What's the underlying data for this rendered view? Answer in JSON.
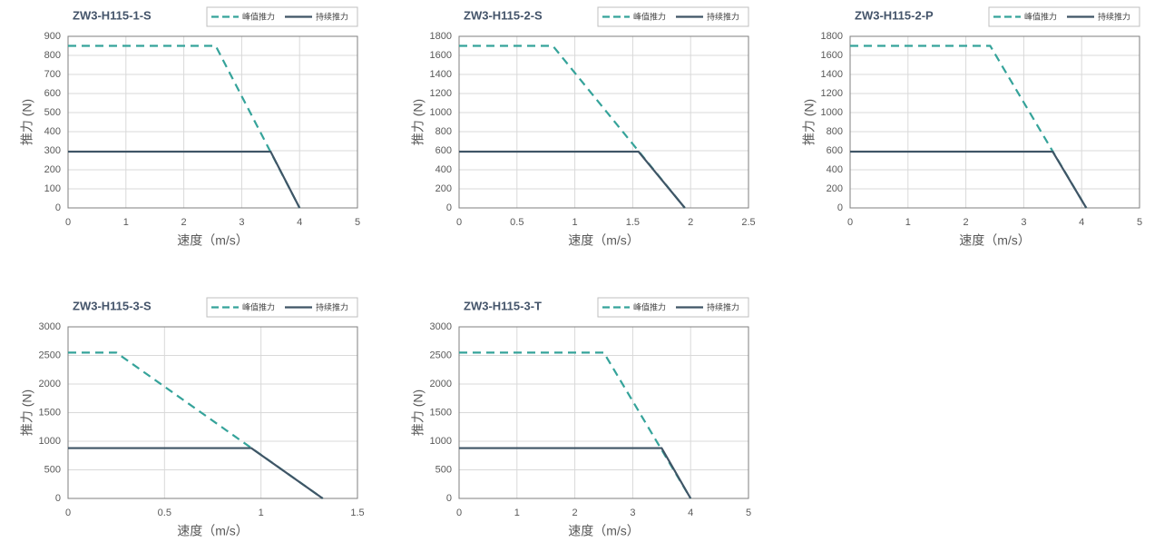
{
  "chart_data": [
    {
      "type": "line",
      "title": "ZW3-H115-1-S",
      "xlabel": "速度（m/s）",
      "ylabel": "推力 (N)",
      "xlim": [
        0,
        5
      ],
      "xticks": [
        0,
        1,
        2,
        3,
        4,
        5
      ],
      "ylim": [
        0,
        900
      ],
      "yticks": [
        0,
        100,
        200,
        300,
        400,
        500,
        600,
        700,
        800,
        900
      ],
      "grid": true,
      "legend": "top-right",
      "series": [
        {
          "name": "峰值推力",
          "color": "#35a39a",
          "dashed": true,
          "x": [
            0,
            2.55,
            4
          ],
          "values": [
            850,
            850,
            0
          ]
        },
        {
          "name": "持续推力",
          "color": "#3f5566",
          "dashed": false,
          "x": [
            0,
            3.5,
            4
          ],
          "values": [
            295,
            295,
            0
          ]
        }
      ]
    },
    {
      "type": "line",
      "title": "ZW3-H115-2-S",
      "xlabel": "速度（m/s）",
      "ylabel": "推力 (N)",
      "xlim": [
        0,
        2.5
      ],
      "xticks": [
        0,
        0.5,
        1,
        1.5,
        2,
        2.5
      ],
      "ylim": [
        0,
        1800
      ],
      "yticks": [
        0,
        200,
        400,
        600,
        800,
        1000,
        1200,
        1400,
        1600,
        1800
      ],
      "grid": true,
      "legend": "top-right",
      "series": [
        {
          "name": "峰值推力",
          "color": "#35a39a",
          "dashed": true,
          "x": [
            0,
            0.81,
            1.95
          ],
          "values": [
            1700,
            1700,
            0
          ]
        },
        {
          "name": "持续推力",
          "color": "#3f5566",
          "dashed": false,
          "x": [
            0,
            1.55,
            1.95
          ],
          "values": [
            590,
            590,
            0
          ]
        }
      ]
    },
    {
      "type": "line",
      "title": "ZW3-H115-2-P",
      "xlabel": "速度（m/s）",
      "ylabel": "推力 (N)",
      "xlim": [
        0,
        5
      ],
      "xticks": [
        0,
        1,
        2,
        3,
        4,
        5
      ],
      "ylim": [
        0,
        1800
      ],
      "yticks": [
        0,
        200,
        400,
        600,
        800,
        1000,
        1200,
        1400,
        1600,
        1800
      ],
      "grid": true,
      "legend": "top-right",
      "series": [
        {
          "name": "峰值推力",
          "color": "#35a39a",
          "dashed": true,
          "x": [
            0,
            2.42,
            4.08
          ],
          "values": [
            1700,
            1700,
            0
          ]
        },
        {
          "name": "持续推力",
          "color": "#3f5566",
          "dashed": false,
          "x": [
            0,
            3.5,
            4.08
          ],
          "values": [
            590,
            590,
            0
          ]
        }
      ]
    },
    {
      "type": "line",
      "title": "ZW3-H115-3-S",
      "xlabel": "速度（m/s）",
      "ylabel": "推力 (N)",
      "xlim": [
        0,
        1.5
      ],
      "xticks": [
        0,
        0.5,
        1,
        1.5
      ],
      "ylim": [
        0,
        3000
      ],
      "yticks": [
        0,
        500,
        1000,
        1500,
        2000,
        2500,
        3000
      ],
      "grid": true,
      "legend": "top-right",
      "series": [
        {
          "name": "峰值推力",
          "color": "#35a39a",
          "dashed": true,
          "x": [
            0,
            0.25,
            1.32
          ],
          "values": [
            2550,
            2550,
            0
          ]
        },
        {
          "name": "持续推力",
          "color": "#3f5566",
          "dashed": false,
          "x": [
            0,
            0.95,
            1.32
          ],
          "values": [
            880,
            880,
            0
          ]
        }
      ]
    },
    {
      "type": "line",
      "title": "ZW3-H115-3-T",
      "xlabel": "速度（m/s）",
      "ylabel": "推力 (N)",
      "xlim": [
        0,
        5
      ],
      "xticks": [
        0,
        1,
        2,
        3,
        4,
        5
      ],
      "ylim": [
        0,
        3000
      ],
      "yticks": [
        0,
        500,
        1000,
        1500,
        2000,
        2500,
        3000
      ],
      "grid": true,
      "legend": "top-right",
      "series": [
        {
          "name": "峰值推力",
          "color": "#35a39a",
          "dashed": true,
          "x": [
            0,
            2.5,
            4
          ],
          "values": [
            2550,
            2550,
            0
          ]
        },
        {
          "name": "持续推力",
          "color": "#3f5566",
          "dashed": false,
          "x": [
            0,
            3.5,
            4
          ],
          "values": [
            880,
            880,
            0
          ]
        }
      ]
    }
  ]
}
